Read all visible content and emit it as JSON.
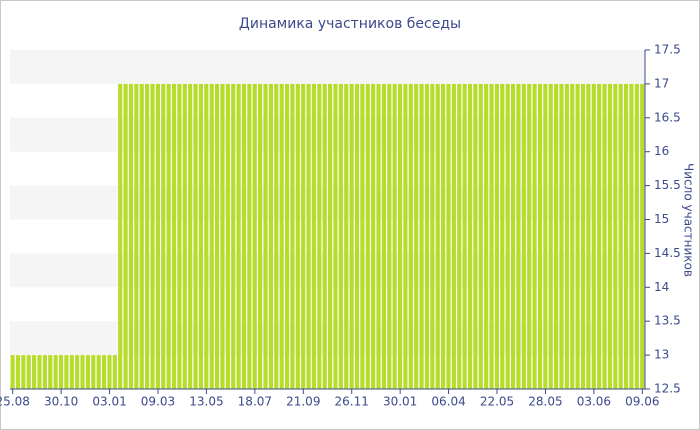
{
  "chart_data": {
    "type": "bar",
    "title": "Динамика участников беседы",
    "y_label": "Число участников",
    "categories": [
      "25.08",
      null,
      null,
      null,
      null,
      null,
      null,
      null,
      null,
      "30.10",
      null,
      null,
      null,
      null,
      null,
      null,
      null,
      null,
      "03.01",
      null,
      null,
      null,
      null,
      null,
      null,
      null,
      null,
      "09.03",
      null,
      null,
      null,
      null,
      null,
      null,
      null,
      null,
      "13.05",
      null,
      null,
      null,
      null,
      null,
      null,
      null,
      null,
      "18.07",
      null,
      null,
      null,
      null,
      null,
      null,
      null,
      null,
      "21.09",
      null,
      null,
      null,
      null,
      null,
      null,
      null,
      null,
      "26.11",
      null,
      null,
      null,
      null,
      null,
      null,
      null,
      null,
      "30.01",
      null,
      null,
      null,
      null,
      null,
      null,
      null,
      null,
      "06.04",
      null,
      null,
      null,
      null,
      null,
      null,
      null,
      null,
      "22.05",
      null,
      null,
      null,
      null,
      null,
      null,
      null,
      null,
      "28.05",
      null,
      null,
      null,
      null,
      null,
      null,
      null,
      null,
      "03.06",
      null,
      null,
      null,
      null,
      null,
      null,
      null,
      null,
      "09.06"
    ],
    "values": [
      13,
      13,
      13,
      13,
      13,
      13,
      13,
      13,
      13,
      13,
      13,
      13,
      13,
      13,
      13,
      13,
      13,
      13,
      13,
      13,
      17,
      17,
      17,
      17,
      17,
      17,
      17,
      17,
      17,
      17,
      17,
      17,
      17,
      17,
      17,
      17,
      17,
      17,
      17,
      17,
      17,
      17,
      17,
      17,
      17,
      17,
      17,
      17,
      17,
      17,
      17,
      17,
      17,
      17,
      17,
      17,
      17,
      17,
      17,
      17,
      17,
      17,
      17,
      17,
      17,
      17,
      17,
      17,
      17,
      17,
      17,
      17,
      17,
      17,
      17,
      17,
      17,
      17,
      17,
      17,
      17,
      17,
      17,
      17,
      17,
      17,
      17,
      17,
      17,
      17,
      17,
      17,
      17,
      17,
      17,
      17,
      17,
      17,
      17,
      17,
      17,
      17,
      17,
      17,
      17,
      17,
      17,
      17,
      17,
      17,
      17,
      17,
      17,
      17,
      17,
      17,
      17,
      17
    ],
    "color": "#b8dc2c",
    "ylim": [
      12.5,
      17.5
    ],
    "yticks": [
      12.5,
      13,
      13.5,
      14,
      14.5,
      15,
      15.5,
      16,
      16.5,
      17,
      17.5
    ],
    "grid": true
  }
}
